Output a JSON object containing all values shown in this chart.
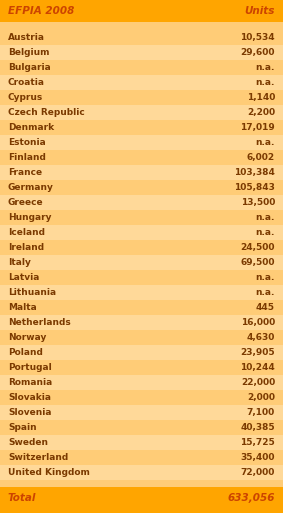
{
  "header": [
    "EFPIA 2008",
    "Units"
  ],
  "rows": [
    [
      "Austria",
      "10,534"
    ],
    [
      "Belgium",
      "29,600"
    ],
    [
      "Bulgaria",
      "n.a."
    ],
    [
      "Croatia",
      "n.a."
    ],
    [
      "Cyprus",
      "1,140"
    ],
    [
      "Czech Republic",
      "2,200"
    ],
    [
      "Denmark",
      "17,019"
    ],
    [
      "Estonia",
      "n.a."
    ],
    [
      "Finland",
      "6,002"
    ],
    [
      "France",
      "103,384"
    ],
    [
      "Germany",
      "105,843"
    ],
    [
      "Greece",
      "13,500"
    ],
    [
      "Hungary",
      "n.a."
    ],
    [
      "Iceland",
      "n.a."
    ],
    [
      "Ireland",
      "24,500"
    ],
    [
      "Italy",
      "69,500"
    ],
    [
      "Latvia",
      "n.a."
    ],
    [
      "Lithuania",
      "n.a."
    ],
    [
      "Malta",
      "445"
    ],
    [
      "Netherlands",
      "16,000"
    ],
    [
      "Norway",
      "4,630"
    ],
    [
      "Poland",
      "23,905"
    ],
    [
      "Portugal",
      "10,244"
    ],
    [
      "Romania",
      "22,000"
    ],
    [
      "Slovakia",
      "2,000"
    ],
    [
      "Slovenia",
      "7,100"
    ],
    [
      "Spain",
      "40,385"
    ],
    [
      "Sweden",
      "15,725"
    ],
    [
      "Switzerland",
      "35,400"
    ],
    [
      "United Kingdom",
      "72,000"
    ]
  ],
  "total": [
    "Total",
    "633,056"
  ],
  "outer_bg": "#FFA500",
  "header_bg": "#FFA500",
  "total_bg": "#FFA500",
  "header_text_color": "#CC4400",
  "total_text_color": "#CC4400",
  "body_text_color": "#7B3A00",
  "row_color_a": "#FFCC77",
  "row_color_b": "#FFD999",
  "gap_color": "#FFBB44",
  "figsize": [
    2.83,
    5.13
  ],
  "dpi": 100
}
